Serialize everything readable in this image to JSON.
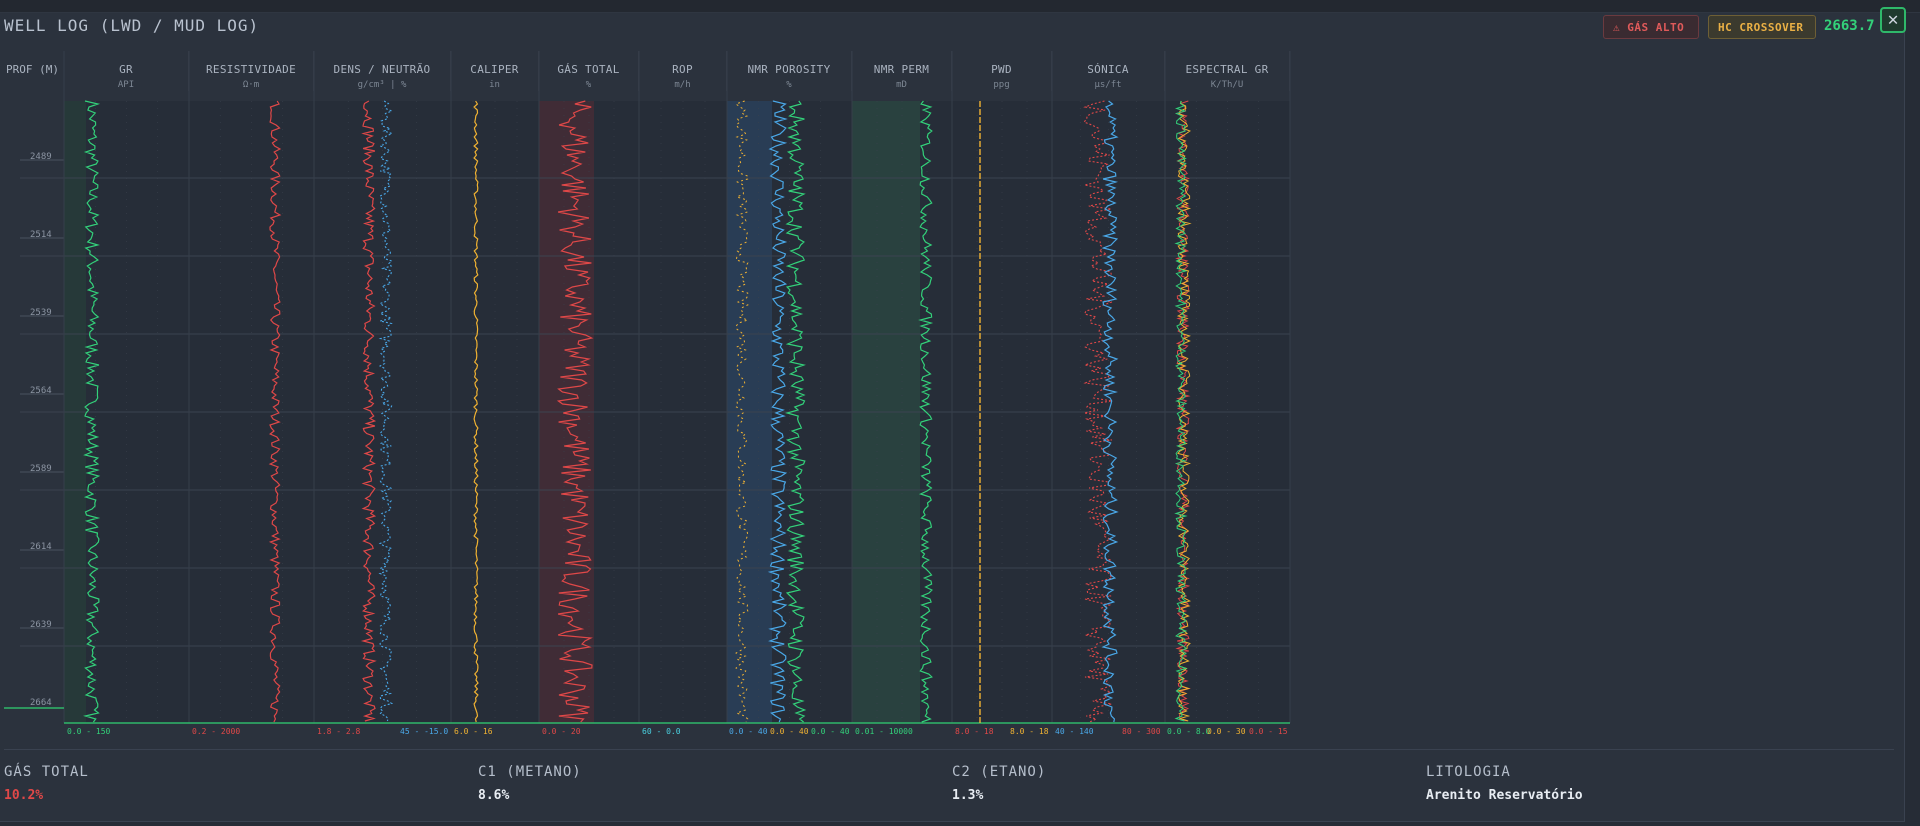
{
  "title": "WELL LOG (LWD / MUD LOG)",
  "badges": {
    "gas": "⚠ GÁS ALTO",
    "hc": "HC CROSSOVER"
  },
  "current_depth": "2663.7 m",
  "close_label": "✕",
  "depth_header": "PROF (M)",
  "depth_ticks": [
    "2489",
    "2514",
    "2539",
    "2564",
    "2589",
    "2614",
    "2639",
    "2664"
  ],
  "tracks": [
    {
      "name": "GR",
      "unit": "API",
      "scales": [
        {
          "text": "0.0 - 150",
          "color": "#33d17a"
        }
      ]
    },
    {
      "name": "RESISTIVIDADE",
      "unit": "Ω·m",
      "scales": [
        {
          "text": "0.2 - 2000",
          "color": "#e04848"
        }
      ]
    },
    {
      "name": "DENS / NEUTRÃO",
      "unit": "g/cm³ | %",
      "scales": [
        {
          "text": "1.8 - 2.8",
          "color": "#e04848"
        },
        {
          "text": "45 - -15.0",
          "color": "#4aa8e8"
        }
      ]
    },
    {
      "name": "CALIPER",
      "unit": "in",
      "scales": [
        {
          "text": "6.0 - 16",
          "color": "#f0b232"
        }
      ]
    },
    {
      "name": "GÁS TOTAL",
      "unit": "%",
      "scales": [
        {
          "text": "0.0 - 20",
          "color": "#e04848"
        }
      ]
    },
    {
      "name": "ROP",
      "unit": "m/h",
      "scales": [
        {
          "text": "60 - 0.0",
          "color": "#4ad0e0"
        }
      ]
    },
    {
      "name": "NMR POROSITY",
      "unit": "%",
      "scales": [
        {
          "text": "0.0 - 40",
          "color": "#4aa8e8"
        },
        {
          "text": "0.0 - 40",
          "color": "#f0b232"
        },
        {
          "text": "0.0 - 40",
          "color": "#33d17a"
        }
      ]
    },
    {
      "name": "NMR PERM",
      "unit": "mD",
      "scales": [
        {
          "text": "0.01 - 10000",
          "color": "#33d17a"
        }
      ]
    },
    {
      "name": "PWD",
      "unit": "ppg",
      "scales": [
        {
          "text": "8.0 - 18",
          "color": "#e04848"
        },
        {
          "text": "8.0 - 18",
          "color": "#f0b232"
        }
      ]
    },
    {
      "name": "SÓNICA",
      "unit": "µs/ft",
      "scales": [
        {
          "text": "40 - 140",
          "color": "#4aa8e8"
        },
        {
          "text": "80 - 300",
          "color": "#e04848"
        }
      ]
    },
    {
      "name": "ESPECTRAL GR",
      "unit": "K/Th/U",
      "scales": [
        {
          "text": "0.0 - 8.0",
          "color": "#33d17a"
        },
        {
          "text": "0.0 - 30",
          "color": "#f0b232"
        },
        {
          "text": "0.0 - 15",
          "color": "#e04848"
        }
      ]
    }
  ],
  "stats": [
    {
      "label": "GÁS TOTAL",
      "value": "10.2%",
      "color": "#e04848"
    },
    {
      "label": "C1 (METANO)",
      "value": "8.6%",
      "color": "#e8edf3"
    },
    {
      "label": "C2 (ETANO)",
      "value": "1.3%",
      "color": "#e8edf3"
    },
    {
      "label": "LITOLOGIA",
      "value": "Arenito Reservatório",
      "color": "#e8edf3"
    }
  ],
  "colors": {
    "green": "#33d17a",
    "red": "#e04848",
    "blue": "#4aa8e8",
    "orange": "#f0b232",
    "cyan": "#4ad0e0"
  }
}
